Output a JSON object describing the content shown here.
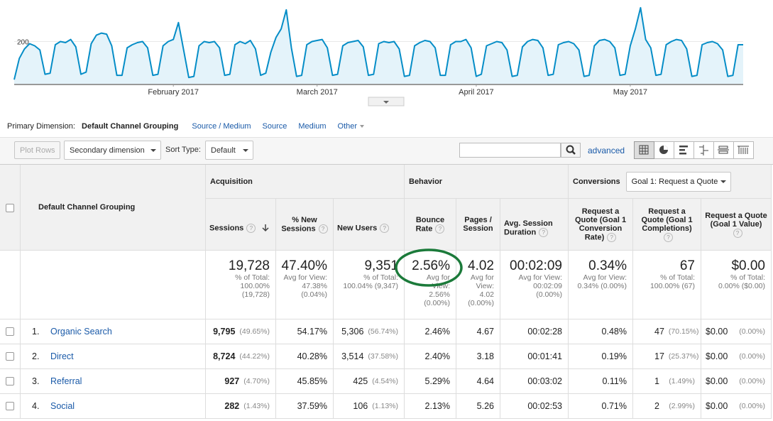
{
  "chart_data": {
    "type": "line",
    "values": [
      20,
      120,
      165,
      190,
      180,
      160,
      45,
      50,
      185,
      200,
      195,
      210,
      175,
      45,
      55,
      190,
      230,
      240,
      235,
      180,
      40,
      40,
      170,
      185,
      195,
      200,
      170,
      40,
      45,
      180,
      200,
      210,
      290,
      160,
      30,
      35,
      180,
      200,
      195,
      200,
      170,
      40,
      45,
      185,
      200,
      190,
      205,
      165,
      40,
      50,
      150,
      220,
      260,
      350,
      170,
      35,
      40,
      185,
      200,
      205,
      210,
      170,
      40,
      45,
      180,
      195,
      200,
      205,
      175,
      40,
      45,
      190,
      200,
      195,
      200,
      165,
      35,
      40,
      180,
      195,
      205,
      200,
      170,
      40,
      40,
      185,
      200,
      200,
      210,
      170,
      35,
      45,
      180,
      190,
      200,
      195,
      160,
      35,
      40,
      175,
      200,
      210,
      205,
      170,
      40,
      45,
      185,
      195,
      200,
      190,
      160,
      35,
      40,
      180,
      205,
      210,
      200,
      170,
      40,
      45,
      180,
      260,
      360,
      210,
      170,
      40,
      45,
      185,
      200,
      210,
      205,
      165,
      35,
      40,
      185,
      195,
      200,
      190,
      160,
      35,
      40,
      185,
      185
    ],
    "xlim": [
      0,
      142
    ],
    "ylim": [
      0,
      380
    ],
    "yticks": [
      200
    ],
    "xticks": [
      {
        "value": 31,
        "label": "February 2017"
      },
      {
        "value": 59,
        "label": "March 2017"
      },
      {
        "value": 90,
        "label": "April 2017"
      },
      {
        "value": 120,
        "label": "May 2017"
      }
    ],
    "color": "#058dc7"
  },
  "primary_dimension": {
    "label": "Primary Dimension:",
    "selected": "Default Channel Grouping",
    "options": [
      "Source / Medium",
      "Source",
      "Medium",
      "Other"
    ]
  },
  "toolbar": {
    "plot_rows": "Plot Rows",
    "secondary_dimension": "Secondary dimension",
    "sort_type_label": "Sort Type:",
    "sort_type": "Default",
    "advanced": "advanced"
  },
  "table": {
    "dimension": "Default Channel Grouping",
    "groups": [
      "Acquisition",
      "Behavior",
      "Conversions"
    ],
    "goal_select": "Goal 1: Request a Quote",
    "help": "?",
    "columns": [
      "Sessions",
      "% New Sessions",
      "New Users",
      "Bounce Rate",
      "Pages / Session",
      "Avg. Session Duration",
      "Request a Quote (Goal 1 Conversion Rate)",
      "Request a Quote (Goal 1 Completions)",
      "Request a Quote (Goal 1 Value)"
    ],
    "totals": [
      {
        "value": "19,728",
        "sub": [
          "% of Total:",
          "100.00%",
          "(19,728)"
        ]
      },
      {
        "value": "47.40%",
        "sub": [
          "Avg for View:",
          "47.38%",
          "(0.04%)"
        ]
      },
      {
        "value": "9,351",
        "sub": [
          "% of Total:",
          "100.04% (9,347)"
        ]
      },
      {
        "value": "2.56%",
        "sub": [
          "Avg for",
          "View:",
          "2.56%",
          "(0.00%)"
        ]
      },
      {
        "value": "4.02",
        "sub": [
          "Avg for",
          "View:",
          "4.02",
          "(0.00%)"
        ]
      },
      {
        "value": "00:02:09",
        "sub": [
          "Avg for View:",
          "00:02:09",
          "(0.00%)"
        ]
      },
      {
        "value": "0.34%",
        "sub": [
          "Avg for View:",
          "0.34% (0.00%)"
        ]
      },
      {
        "value": "67",
        "sub": [
          "% of Total:",
          "100.00% (67)"
        ]
      },
      {
        "value": "$0.00",
        "sub": [
          "% of Total:",
          "0.00% ($0.00)"
        ]
      }
    ],
    "rows": [
      {
        "index": "1.",
        "name": "Organic Search",
        "cells": [
          {
            "value": "9,795",
            "pct": "(49.65%)"
          },
          {
            "value": "54.17%"
          },
          {
            "value": "5,306",
            "pct": "(56.74%)"
          },
          {
            "value": "2.46%"
          },
          {
            "value": "4.67"
          },
          {
            "value": "00:02:28"
          },
          {
            "value": "0.48%"
          },
          {
            "value": "47",
            "pct": "(70.15%)"
          },
          {
            "value": "$0.00",
            "pct": "(0.00%)"
          }
        ]
      },
      {
        "index": "2.",
        "name": "Direct",
        "cells": [
          {
            "value": "8,724",
            "pct": "(44.22%)"
          },
          {
            "value": "40.28%"
          },
          {
            "value": "3,514",
            "pct": "(37.58%)"
          },
          {
            "value": "2.40%"
          },
          {
            "value": "3.18"
          },
          {
            "value": "00:01:41"
          },
          {
            "value": "0.19%"
          },
          {
            "value": "17",
            "pct": "(25.37%)"
          },
          {
            "value": "$0.00",
            "pct": "(0.00%)"
          }
        ]
      },
      {
        "index": "3.",
        "name": "Referral",
        "cells": [
          {
            "value": "927",
            "pct": "(4.70%)"
          },
          {
            "value": "45.85%"
          },
          {
            "value": "425",
            "pct": "(4.54%)"
          },
          {
            "value": "5.29%"
          },
          {
            "value": "4.64"
          },
          {
            "value": "00:03:02"
          },
          {
            "value": "0.11%"
          },
          {
            "value": "1",
            "pct": "(1.49%)"
          },
          {
            "value": "$0.00",
            "pct": "(0.00%)"
          }
        ]
      },
      {
        "index": "4.",
        "name": "Social",
        "cells": [
          {
            "value": "282",
            "pct": "(1.43%)"
          },
          {
            "value": "37.59%"
          },
          {
            "value": "106",
            "pct": "(1.13%)"
          },
          {
            "value": "2.13%"
          },
          {
            "value": "5.26"
          },
          {
            "value": "00:02:53"
          },
          {
            "value": "0.71%"
          },
          {
            "value": "2",
            "pct": "(2.99%)"
          },
          {
            "value": "$0.00",
            "pct": "(0.00%)"
          }
        ]
      }
    ]
  }
}
